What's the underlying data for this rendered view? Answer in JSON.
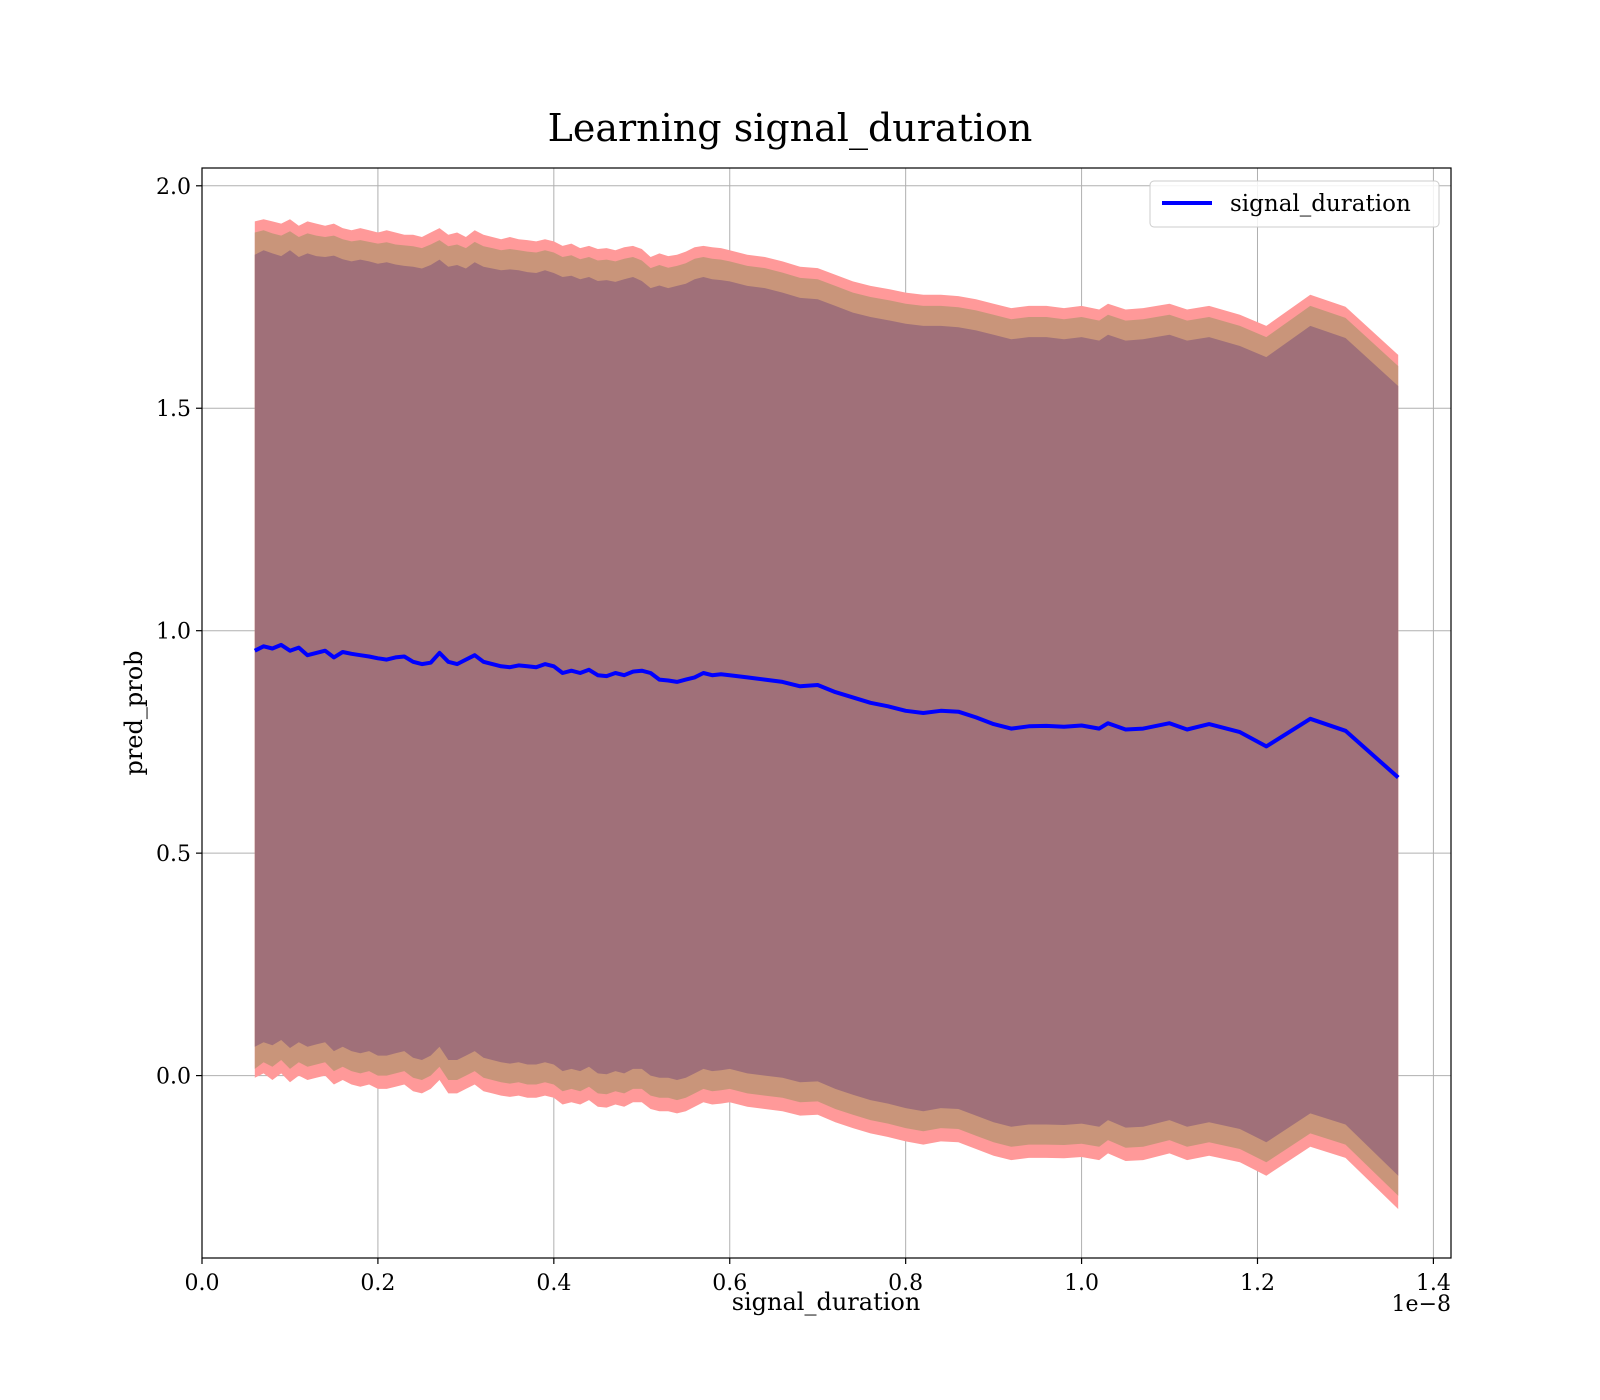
{
  "chart_data": {
    "type": "line",
    "title": "Learning signal_duration",
    "xlabel": "signal_duration",
    "ylabel": "pred_prob",
    "x_offset_label": "1e−8",
    "x_unit_scale": 1e-08,
    "xlim": [
      0.0,
      1.42
    ],
    "ylim": [
      -0.41,
      2.04
    ],
    "xticks": [
      0.0,
      0.2,
      0.4,
      0.6,
      0.8,
      1.0,
      1.2,
      1.4
    ],
    "xtick_labels": [
      "0.0",
      "0.2",
      "0.4",
      "0.6",
      "0.8",
      "1.0",
      "1.2",
      "1.4"
    ],
    "yticks": [
      0.0,
      0.5,
      1.0,
      1.5,
      2.0
    ],
    "ytick_labels": [
      "0.0",
      "0.5",
      "1.0",
      "1.5",
      "2.0"
    ],
    "grid": true,
    "legend": {
      "position": "top-right",
      "entries": [
        "signal_duration"
      ]
    },
    "colors": {
      "line": "#0000ff",
      "band_outer": "#ff9999",
      "band_middle": "#c9957a",
      "band_inner": "#a07079",
      "grid": "#b0b0b0",
      "axes": "#000000"
    },
    "x": [
      0.06,
      0.07,
      0.08,
      0.09,
      0.1,
      0.11,
      0.12,
      0.13,
      0.14,
      0.15,
      0.16,
      0.17,
      0.18,
      0.19,
      0.2,
      0.21,
      0.22,
      0.23,
      0.24,
      0.25,
      0.26,
      0.27,
      0.28,
      0.29,
      0.3,
      0.31,
      0.32,
      0.33,
      0.34,
      0.35,
      0.36,
      0.37,
      0.38,
      0.39,
      0.4,
      0.41,
      0.42,
      0.43,
      0.44,
      0.45,
      0.46,
      0.47,
      0.48,
      0.49,
      0.5,
      0.51,
      0.52,
      0.53,
      0.54,
      0.55,
      0.56,
      0.57,
      0.58,
      0.59,
      0.6,
      0.62,
      0.64,
      0.66,
      0.68,
      0.7,
      0.72,
      0.74,
      0.76,
      0.78,
      0.8,
      0.82,
      0.84,
      0.86,
      0.88,
      0.9,
      0.92,
      0.94,
      0.96,
      0.98,
      1.0,
      1.02,
      1.03,
      1.05,
      1.07,
      1.1,
      1.12,
      1.145,
      1.18,
      1.21,
      1.26,
      1.3,
      1.36
    ],
    "series": [
      {
        "name": "signal_duration",
        "values": [
          0.955,
          0.965,
          0.96,
          0.968,
          0.955,
          0.962,
          0.945,
          0.95,
          0.955,
          0.94,
          0.952,
          0.948,
          0.945,
          0.942,
          0.938,
          0.935,
          0.94,
          0.942,
          0.93,
          0.925,
          0.928,
          0.95,
          0.93,
          0.925,
          0.935,
          0.945,
          0.93,
          0.925,
          0.92,
          0.918,
          0.922,
          0.92,
          0.918,
          0.925,
          0.92,
          0.905,
          0.91,
          0.905,
          0.912,
          0.9,
          0.898,
          0.905,
          0.9,
          0.908,
          0.91,
          0.905,
          0.89,
          0.888,
          0.885,
          0.89,
          0.895,
          0.905,
          0.9,
          0.902,
          0.9,
          0.895,
          0.89,
          0.885,
          0.875,
          0.878,
          0.862,
          0.85,
          0.838,
          0.83,
          0.82,
          0.815,
          0.82,
          0.818,
          0.805,
          0.79,
          0.78,
          0.785,
          0.786,
          0.784,
          0.787,
          0.78,
          0.792,
          0.778,
          0.78,
          0.792,
          0.778,
          0.79,
          0.772,
          0.74,
          0.802,
          0.775,
          0.67
        ]
      }
    ],
    "bands": [
      {
        "level": "outer",
        "upper": [
          1.92,
          1.925,
          1.92,
          1.915,
          1.925,
          1.91,
          1.92,
          1.915,
          1.91,
          1.915,
          1.905,
          1.9,
          1.905,
          1.9,
          1.895,
          1.9,
          1.895,
          1.89,
          1.89,
          1.885,
          1.895,
          1.905,
          1.89,
          1.895,
          1.885,
          1.9,
          1.89,
          1.885,
          1.88,
          1.885,
          1.88,
          1.878,
          1.875,
          1.88,
          1.875,
          1.865,
          1.87,
          1.86,
          1.865,
          1.858,
          1.86,
          1.855,
          1.862,
          1.865,
          1.858,
          1.84,
          1.848,
          1.842,
          1.845,
          1.852,
          1.862,
          1.865,
          1.862,
          1.86,
          1.855,
          1.845,
          1.84,
          1.83,
          1.818,
          1.815,
          1.8,
          1.785,
          1.775,
          1.768,
          1.76,
          1.755,
          1.755,
          1.752,
          1.745,
          1.735,
          1.725,
          1.73,
          1.73,
          1.725,
          1.73,
          1.722,
          1.735,
          1.722,
          1.725,
          1.735,
          1.722,
          1.73,
          1.71,
          1.685,
          1.755,
          1.728,
          1.62
        ],
        "lower": [
          -0.005,
          0.005,
          -0.01,
          0.005,
          -0.015,
          0.0,
          -0.01,
          -0.005,
          0.0,
          -0.02,
          -0.01,
          -0.02,
          -0.025,
          -0.02,
          -0.03,
          -0.03,
          -0.025,
          -0.02,
          -0.035,
          -0.04,
          -0.03,
          -0.01,
          -0.04,
          -0.04,
          -0.03,
          -0.02,
          -0.035,
          -0.04,
          -0.045,
          -0.048,
          -0.045,
          -0.05,
          -0.05,
          -0.045,
          -0.05,
          -0.065,
          -0.06,
          -0.065,
          -0.055,
          -0.07,
          -0.072,
          -0.065,
          -0.07,
          -0.06,
          -0.06,
          -0.075,
          -0.08,
          -0.08,
          -0.085,
          -0.08,
          -0.07,
          -0.06,
          -0.065,
          -0.063,
          -0.06,
          -0.07,
          -0.075,
          -0.08,
          -0.09,
          -0.088,
          -0.105,
          -0.118,
          -0.13,
          -0.138,
          -0.148,
          -0.155,
          -0.148,
          -0.15,
          -0.165,
          -0.18,
          -0.19,
          -0.185,
          -0.185,
          -0.186,
          -0.183,
          -0.19,
          -0.175,
          -0.192,
          -0.19,
          -0.175,
          -0.19,
          -0.18,
          -0.195,
          -0.225,
          -0.16,
          -0.185,
          -0.3
        ]
      },
      {
        "level": "middle",
        "upper": [
          1.895,
          1.9,
          1.893,
          1.888,
          1.898,
          1.885,
          1.893,
          1.888,
          1.885,
          1.888,
          1.88,
          1.875,
          1.878,
          1.874,
          1.87,
          1.873,
          1.868,
          1.866,
          1.864,
          1.86,
          1.868,
          1.878,
          1.864,
          1.868,
          1.86,
          1.874,
          1.864,
          1.86,
          1.855,
          1.858,
          1.855,
          1.852,
          1.85,
          1.855,
          1.85,
          1.84,
          1.844,
          1.835,
          1.84,
          1.832,
          1.834,
          1.83,
          1.836,
          1.84,
          1.832,
          1.815,
          1.822,
          1.816,
          1.82,
          1.826,
          1.836,
          1.84,
          1.836,
          1.834,
          1.83,
          1.82,
          1.815,
          1.805,
          1.793,
          1.79,
          1.775,
          1.76,
          1.75,
          1.743,
          1.735,
          1.73,
          1.73,
          1.727,
          1.72,
          1.71,
          1.7,
          1.705,
          1.705,
          1.7,
          1.705,
          1.697,
          1.71,
          1.697,
          1.7,
          1.71,
          1.697,
          1.705,
          1.685,
          1.66,
          1.73,
          1.703,
          1.595
        ],
        "lower": [
          0.015,
          0.03,
          0.02,
          0.035,
          0.015,
          0.03,
          0.02,
          0.025,
          0.03,
          0.01,
          0.02,
          0.01,
          0.005,
          0.01,
          0.0,
          0.0,
          0.005,
          0.01,
          -0.005,
          -0.01,
          0.0,
          0.02,
          -0.01,
          -0.01,
          0.0,
          0.01,
          -0.005,
          -0.01,
          -0.015,
          -0.018,
          -0.015,
          -0.02,
          -0.02,
          -0.015,
          -0.02,
          -0.035,
          -0.03,
          -0.035,
          -0.025,
          -0.04,
          -0.042,
          -0.035,
          -0.04,
          -0.03,
          -0.03,
          -0.045,
          -0.05,
          -0.05,
          -0.055,
          -0.05,
          -0.04,
          -0.03,
          -0.035,
          -0.033,
          -0.03,
          -0.04,
          -0.045,
          -0.05,
          -0.06,
          -0.058,
          -0.075,
          -0.088,
          -0.1,
          -0.108,
          -0.118,
          -0.125,
          -0.118,
          -0.12,
          -0.135,
          -0.15,
          -0.16,
          -0.155,
          -0.155,
          -0.156,
          -0.153,
          -0.16,
          -0.145,
          -0.162,
          -0.16,
          -0.145,
          -0.16,
          -0.15,
          -0.165,
          -0.195,
          -0.13,
          -0.155,
          -0.27
        ]
      },
      {
        "level": "inner",
        "upper": [
          1.845,
          1.855,
          1.848,
          1.842,
          1.855,
          1.84,
          1.848,
          1.842,
          1.84,
          1.843,
          1.835,
          1.83,
          1.834,
          1.83,
          1.825,
          1.828,
          1.823,
          1.82,
          1.818,
          1.814,
          1.822,
          1.834,
          1.818,
          1.822,
          1.814,
          1.828,
          1.818,
          1.814,
          1.81,
          1.812,
          1.81,
          1.806,
          1.804,
          1.81,
          1.804,
          1.795,
          1.798,
          1.79,
          1.795,
          1.786,
          1.788,
          1.784,
          1.79,
          1.795,
          1.786,
          1.77,
          1.776,
          1.77,
          1.775,
          1.78,
          1.79,
          1.795,
          1.79,
          1.788,
          1.785,
          1.775,
          1.77,
          1.76,
          1.748,
          1.745,
          1.73,
          1.715,
          1.705,
          1.698,
          1.69,
          1.685,
          1.685,
          1.682,
          1.675,
          1.665,
          1.655,
          1.66,
          1.66,
          1.655,
          1.66,
          1.652,
          1.665,
          1.652,
          1.655,
          1.665,
          1.652,
          1.66,
          1.64,
          1.615,
          1.685,
          1.658,
          1.55
        ],
        "lower": [
          0.065,
          0.075,
          0.068,
          0.08,
          0.062,
          0.075,
          0.065,
          0.07,
          0.075,
          0.055,
          0.065,
          0.055,
          0.05,
          0.055,
          0.045,
          0.045,
          0.05,
          0.055,
          0.04,
          0.035,
          0.045,
          0.065,
          0.035,
          0.035,
          0.045,
          0.055,
          0.04,
          0.035,
          0.03,
          0.027,
          0.03,
          0.025,
          0.025,
          0.03,
          0.025,
          0.01,
          0.015,
          0.01,
          0.02,
          0.005,
          0.003,
          0.01,
          0.005,
          0.015,
          0.015,
          0.0,
          -0.005,
          -0.005,
          -0.01,
          -0.005,
          0.005,
          0.015,
          0.01,
          0.012,
          0.015,
          0.005,
          0.0,
          -0.005,
          -0.015,
          -0.013,
          -0.03,
          -0.043,
          -0.055,
          -0.063,
          -0.073,
          -0.08,
          -0.073,
          -0.075,
          -0.09,
          -0.105,
          -0.115,
          -0.11,
          -0.11,
          -0.111,
          -0.108,
          -0.115,
          -0.1,
          -0.117,
          -0.115,
          -0.1,
          -0.115,
          -0.105,
          -0.12,
          -0.15,
          -0.085,
          -0.11,
          -0.225
        ]
      }
    ]
  }
}
